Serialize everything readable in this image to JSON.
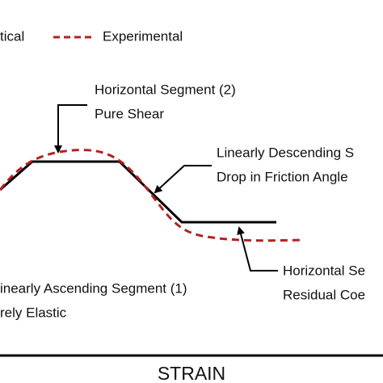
{
  "legend": {
    "theoretical": "tical",
    "experimental": "Experimental"
  },
  "annotations": {
    "segment2": {
      "title": "Horizontal Segment (2)",
      "subtitle": "Pure Shear"
    },
    "segment3": {
      "title": "Linearly Descending S",
      "subtitle": "Drop in Friction Angle"
    },
    "segment4": {
      "title": "Horizontal Se",
      "subtitle": "Residual Coe"
    },
    "segment1": {
      "title": "inearly Ascending Segment (1)",
      "subtitle": "rely Elastic"
    }
  },
  "axis": {
    "x_label": "STRAIN"
  }
}
